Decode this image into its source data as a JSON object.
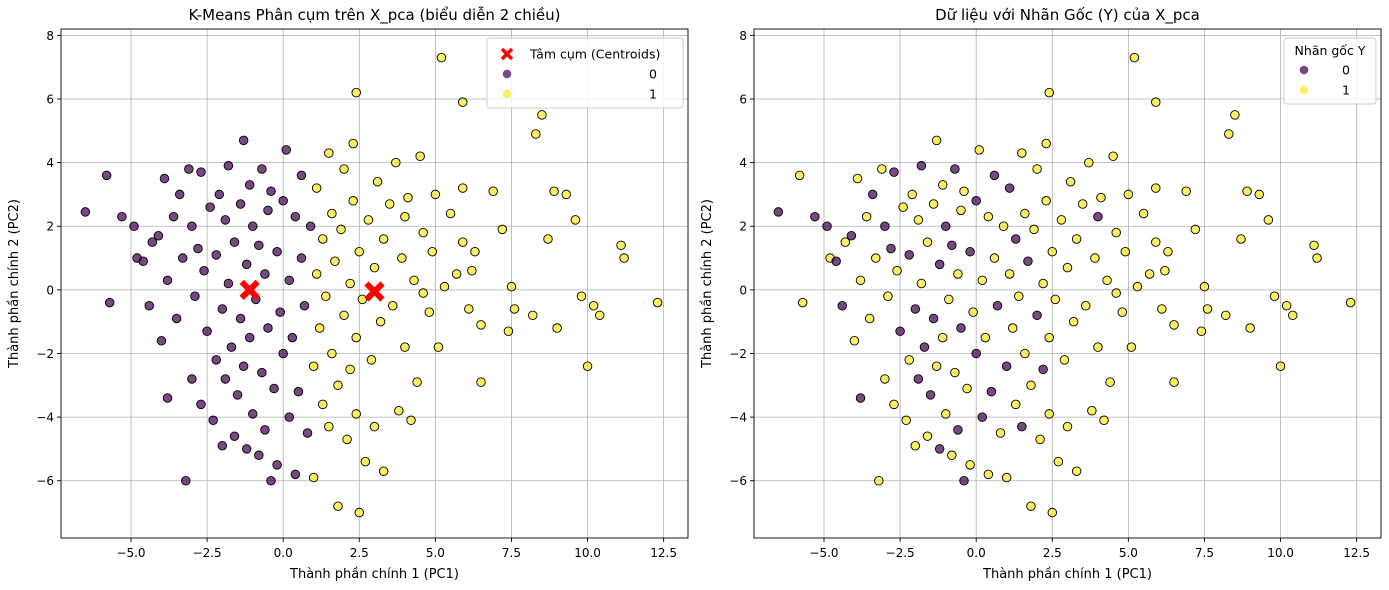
{
  "colors": {
    "cluster0": "#440154",
    "cluster1": "#fde725",
    "centroid": "#ff0000",
    "edge": "#000000"
  },
  "chart_data": [
    {
      "type": "scatter",
      "title": "K-Means Phân cụm trên X_pca (biểu diễn 2 chiều)",
      "xlabel": "Thành phần chính 1 (PC1)",
      "ylabel": "Thành phần chính 2 (PC2)",
      "xlim": [
        -7.3,
        13.3
      ],
      "ylim": [
        -7.8,
        8.2
      ],
      "xticks": [
        -5.0,
        -2.5,
        0.0,
        2.5,
        5.0,
        7.5,
        10.0,
        12.5
      ],
      "xtick_labels": [
        "−5.0",
        "−2.5",
        "0.0",
        "2.5",
        "5.0",
        "7.5",
        "10.0",
        "12.5"
      ],
      "yticks": [
        -6,
        -4,
        -2,
        0,
        2,
        4,
        6,
        8
      ],
      "ytick_labels": [
        "−6",
        "−4",
        "−2",
        "0",
        "2",
        "4",
        "6",
        "8"
      ],
      "grid": true,
      "color_by": "kmeans",
      "legend": {
        "placement": "top-right",
        "title": "",
        "entries": [
          {
            "label": "Tâm cụm (Centroids)",
            "marker": "x",
            "color": "#ff0000"
          },
          {
            "label": "0",
            "marker": "o",
            "color": "#440154"
          },
          {
            "label": "1",
            "marker": "o",
            "color": "#fde725"
          }
        ]
      },
      "centroids": [
        {
          "x": -1.1,
          "y": 0.0
        },
        {
          "x": 3.0,
          "y": -0.05
        }
      ],
      "series": [
        {
          "name": "0",
          "description_only": false
        },
        {
          "name": "1",
          "description_only": false
        }
      ]
    },
    {
      "type": "scatter",
      "title": "Dữ liệu với Nhãn Gốc (Y) của X_pca",
      "xlabel": "Thành phần chính 1 (PC1)",
      "ylabel": "Thành phần chính 2 (PC2)",
      "xlim": [
        -7.3,
        13.3
      ],
      "ylim": [
        -7.8,
        8.2
      ],
      "xticks": [
        -5.0,
        -2.5,
        0.0,
        2.5,
        5.0,
        7.5,
        10.0,
        12.5
      ],
      "xtick_labels": [
        "−5.0",
        "−2.5",
        "0.0",
        "2.5",
        "5.0",
        "7.5",
        "10.0",
        "12.5"
      ],
      "yticks": [
        -6,
        -4,
        -2,
        0,
        2,
        4,
        6,
        8
      ],
      "ytick_labels": [
        "−6",
        "−4",
        "−2",
        "0",
        "2",
        "4",
        "6",
        "8"
      ],
      "grid": true,
      "color_by": "label",
      "legend": {
        "placement": "top-right",
        "title": "Nhãn gốc Y",
        "entries": [
          {
            "label": "0",
            "marker": "o",
            "color": "#440154"
          },
          {
            "label": "1",
            "marker": "o",
            "color": "#fde725"
          }
        ]
      },
      "series": [
        {
          "name": "0"
        },
        {
          "name": "1"
        }
      ]
    }
  ],
  "points": [
    [
      -6.5,
      2.45,
      0
    ],
    [
      -5.8,
      3.6,
      1
    ],
    [
      -5.7,
      -0.4,
      1
    ],
    [
      -5.3,
      2.3,
      0
    ],
    [
      -4.9,
      2.0,
      0
    ],
    [
      -4.8,
      1.0,
      1
    ],
    [
      -4.6,
      0.9,
      0
    ],
    [
      -4.4,
      -0.5,
      0
    ],
    [
      -4.3,
      1.5,
      1
    ],
    [
      -4.1,
      1.7,
      0
    ],
    [
      -4.0,
      -1.6,
      1
    ],
    [
      -3.9,
      3.5,
      1
    ],
    [
      -3.8,
      0.3,
      1
    ],
    [
      -3.8,
      -3.4,
      0
    ],
    [
      -3.6,
      2.3,
      1
    ],
    [
      -3.5,
      -0.9,
      1
    ],
    [
      -3.4,
      3.0,
      0
    ],
    [
      -3.3,
      1.0,
      1
    ],
    [
      -3.2,
      -6.0,
      1
    ],
    [
      -3.1,
      3.8,
      1
    ],
    [
      -3.0,
      -2.8,
      1
    ],
    [
      -3.0,
      2.0,
      0
    ],
    [
      -2.9,
      -0.2,
      1
    ],
    [
      -2.8,
      1.3,
      0
    ],
    [
      -2.7,
      -3.6,
      1
    ],
    [
      -2.7,
      3.7,
      0
    ],
    [
      -2.6,
      0.6,
      1
    ],
    [
      -2.5,
      -1.3,
      0
    ],
    [
      -2.4,
      2.6,
      1
    ],
    [
      -2.3,
      -4.1,
      1
    ],
    [
      -2.2,
      1.1,
      0
    ],
    [
      -2.2,
      -2.2,
      1
    ],
    [
      -2.1,
      3.0,
      1
    ],
    [
      -2.0,
      -0.6,
      0
    ],
    [
      -2.0,
      -4.9,
      1
    ],
    [
      -1.9,
      -2.8,
      0
    ],
    [
      -1.9,
      2.2,
      1
    ],
    [
      -1.8,
      3.9,
      0
    ],
    [
      -1.8,
      0.2,
      1
    ],
    [
      -1.7,
      -1.8,
      0
    ],
    [
      -1.6,
      -4.6,
      1
    ],
    [
      -1.6,
      1.5,
      1
    ],
    [
      -1.5,
      -3.3,
      0
    ],
    [
      -1.4,
      2.7,
      1
    ],
    [
      -1.4,
      -0.9,
      0
    ],
    [
      -1.3,
      4.7,
      1
    ],
    [
      -1.3,
      -2.4,
      1
    ],
    [
      -1.2,
      0.8,
      0
    ],
    [
      -1.2,
      -5.0,
      0
    ],
    [
      -1.1,
      3.3,
      1
    ],
    [
      -1.1,
      -1.5,
      1
    ],
    [
      -1.0,
      2.0,
      0
    ],
    [
      -1.0,
      -3.9,
      1
    ],
    [
      -0.9,
      -0.3,
      1
    ],
    [
      -0.8,
      1.4,
      0
    ],
    [
      -0.8,
      -5.2,
      1
    ],
    [
      -0.7,
      3.8,
      0
    ],
    [
      -0.7,
      -2.6,
      1
    ],
    [
      -0.6,
      0.5,
      1
    ],
    [
      -0.6,
      -4.4,
      0
    ],
    [
      -0.5,
      2.5,
      1
    ],
    [
      -0.5,
      -1.2,
      0
    ],
    [
      -0.4,
      -6.0,
      0
    ],
    [
      -0.4,
      3.1,
      1
    ],
    [
      -0.3,
      -3.1,
      1
    ],
    [
      -0.2,
      1.2,
      0
    ],
    [
      -0.2,
      -5.5,
      1
    ],
    [
      -0.1,
      -0.7,
      1
    ],
    [
      0.0,
      2.8,
      0
    ],
    [
      0.0,
      -2.0,
      0
    ],
    [
      0.1,
      4.4,
      1
    ],
    [
      0.2,
      -4.0,
      0
    ],
    [
      0.2,
      0.3,
      1
    ],
    [
      0.3,
      -1.5,
      1
    ],
    [
      0.4,
      2.3,
      1
    ],
    [
      0.4,
      -5.8,
      1
    ],
    [
      0.5,
      -3.2,
      0
    ],
    [
      0.6,
      1.0,
      1
    ],
    [
      0.6,
      3.6,
      0
    ],
    [
      0.7,
      -0.5,
      0
    ],
    [
      0.8,
      -4.5,
      1
    ],
    [
      0.9,
      2.0,
      1
    ],
    [
      1.0,
      -2.4,
      0
    ],
    [
      1.0,
      -5.9,
      1
    ],
    [
      1.1,
      0.5,
      1
    ],
    [
      1.1,
      3.2,
      0
    ],
    [
      1.2,
      -1.2,
      1
    ],
    [
      1.3,
      -3.6,
      1
    ],
    [
      1.3,
      1.6,
      0
    ],
    [
      1.4,
      -0.2,
      1
    ],
    [
      1.5,
      4.3,
      1
    ],
    [
      1.5,
      -4.3,
      0
    ],
    [
      1.6,
      2.4,
      1
    ],
    [
      1.6,
      -2.0,
      1
    ],
    [
      1.7,
      0.9,
      0
    ],
    [
      1.8,
      -6.8,
      1
    ],
    [
      1.8,
      -3.0,
      1
    ],
    [
      1.9,
      1.9,
      1
    ],
    [
      2.0,
      -0.8,
      0
    ],
    [
      2.0,
      3.8,
      1
    ],
    [
      2.1,
      -4.7,
      1
    ],
    [
      2.2,
      0.2,
      1
    ],
    [
      2.2,
      -2.5,
      0
    ],
    [
      2.3,
      2.8,
      1
    ],
    [
      2.3,
      4.6,
      1
    ],
    [
      2.4,
      -1.5,
      1
    ],
    [
      2.4,
      -3.9,
      1
    ],
    [
      2.4,
      6.2,
      1
    ],
    [
      2.5,
      -7.0,
      1
    ],
    [
      2.5,
      1.2,
      1
    ],
    [
      2.6,
      -0.3,
      1
    ],
    [
      2.7,
      -5.4,
      1
    ],
    [
      2.8,
      2.2,
      1
    ],
    [
      2.9,
      -2.2,
      1
    ],
    [
      3.0,
      0.7,
      1
    ],
    [
      3.0,
      -4.3,
      1
    ],
    [
      3.1,
      3.4,
      1
    ],
    [
      3.2,
      -1.0,
      1
    ],
    [
      3.3,
      1.6,
      1
    ],
    [
      3.3,
      -5.7,
      1
    ],
    [
      3.5,
      2.7,
      1
    ],
    [
      3.6,
      -0.5,
      1
    ],
    [
      3.7,
      4.0,
      1
    ],
    [
      3.8,
      -3.8,
      1
    ],
    [
      3.9,
      1.0,
      1
    ],
    [
      4.0,
      -1.8,
      1
    ],
    [
      4.1,
      2.9,
      1
    ],
    [
      4.2,
      -4.1,
      1
    ],
    [
      4.3,
      0.3,
      1
    ],
    [
      4.4,
      -2.9,
      1
    ],
    [
      4.5,
      4.2,
      1
    ],
    [
      4.6,
      1.8,
      1
    ],
    [
      4.8,
      -0.7,
      1
    ],
    [
      5.0,
      3.0,
      1
    ],
    [
      5.1,
      -1.8,
      1
    ],
    [
      5.2,
      7.3,
      1
    ],
    [
      5.3,
      0.1,
      1
    ],
    [
      5.5,
      2.4,
      1
    ],
    [
      5.7,
      0.5,
      1
    ],
    [
      5.9,
      5.9,
      1
    ],
    [
      5.9,
      3.2,
      1
    ],
    [
      6.1,
      -0.6,
      1
    ],
    [
      6.3,
      1.2,
      1
    ],
    [
      6.5,
      -2.9,
      1
    ],
    [
      6.5,
      -1.1,
      1
    ],
    [
      6.9,
      3.1,
      1
    ],
    [
      7.2,
      1.9,
      1
    ],
    [
      7.5,
      0.1,
      1
    ],
    [
      7.4,
      -1.3,
      1
    ],
    [
      8.3,
      4.9,
      1
    ],
    [
      8.5,
      5.5,
      1
    ],
    [
      8.7,
      1.6,
      1
    ],
    [
      8.9,
      3.1,
      1
    ],
    [
      9.0,
      -1.2,
      1
    ],
    [
      9.3,
      3.0,
      1
    ],
    [
      9.6,
      2.2,
      1
    ],
    [
      9.8,
      -0.2,
      1
    ],
    [
      10.0,
      -2.4,
      1
    ],
    [
      10.2,
      -0.5,
      1
    ],
    [
      10.4,
      -0.8,
      1
    ],
    [
      11.1,
      1.4,
      1
    ],
    [
      11.2,
      1.0,
      1
    ],
    [
      12.3,
      -0.4,
      1
    ],
    [
      8.2,
      -0.8,
      1
    ],
    [
      7.6,
      -0.6,
      1
    ],
    [
      6.2,
      0.6,
      1
    ],
    [
      5.9,
      1.5,
      1
    ],
    [
      4.9,
      1.2,
      1
    ],
    [
      4.6,
      -0.1,
      1
    ],
    [
      4.0,
      2.3,
      0
    ]
  ]
}
